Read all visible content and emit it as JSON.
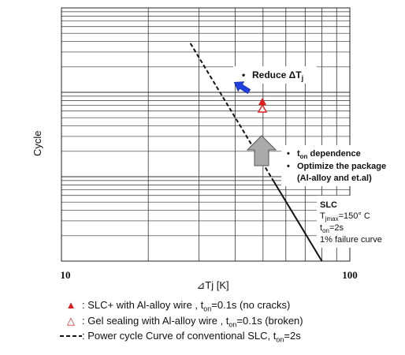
{
  "chart_data": {
    "type": "line",
    "xscale": "log",
    "xlim": [
      10,
      100
    ],
    "xticks": [
      "10",
      "100"
    ],
    "xlabel": "⊿Tj [K]",
    "ylabel": "Cycle",
    "yscale": "log",
    "grid": true,
    "series": [
      {
        "name": "Power cycle Curve of conventional SLC, t_on=2s",
        "style": "dashed-then-solid",
        "x": [
          28,
          80
        ],
        "y_norm": [
          0.86,
          0.0
        ]
      }
    ],
    "markers": [
      {
        "name": "SLC+ with Al-alloy wire",
        "symbol": "filled-triangle",
        "color": "#e31b1b",
        "x": 36
      },
      {
        "name": "Gel sealing with Al-alloy wire",
        "symbol": "open-triangle",
        "color": "#e31b1b",
        "x": 36
      }
    ],
    "annotations": {
      "reduce": "Reduce ΔT",
      "reduce_sub": "j",
      "dep_main": "dependence",
      "dep_t": "t",
      "dep_sub": "on",
      "opt1": "Optimize the package",
      "opt2": "(Al-alloy and et.al)",
      "slc_title": "SLC",
      "slc_t1": "T",
      "slc_t1_sub": "jmax",
      "slc_t1_val": "=150° C",
      "slc_t2": "t",
      "slc_t2_sub": "on",
      "slc_t2_val": "=2s",
      "slc_t3": "1% failure curve",
      "bullet": "•"
    }
  },
  "legend": {
    "item1_sym": "▲",
    "item1_text": ": SLC+ with Al-alloy wire , t",
    "item1_sub": "on",
    "item1_tail": "=0.1s (no cracks)",
    "item2_sym": "△",
    "item2_text": ": Gel sealing with Al-alloy wire , t",
    "item2_sub": "on",
    "item2_tail": "=0.1s (broken)",
    "item3_text": ": Power cycle Curve of conventional SLC, t",
    "item3_sub": "on",
    "item3_tail": "=2s"
  },
  "colors": {
    "marker": "#e31b1b",
    "arrow_blue": "#1f3fe0",
    "arrow_gray": "#aaaaaa"
  }
}
